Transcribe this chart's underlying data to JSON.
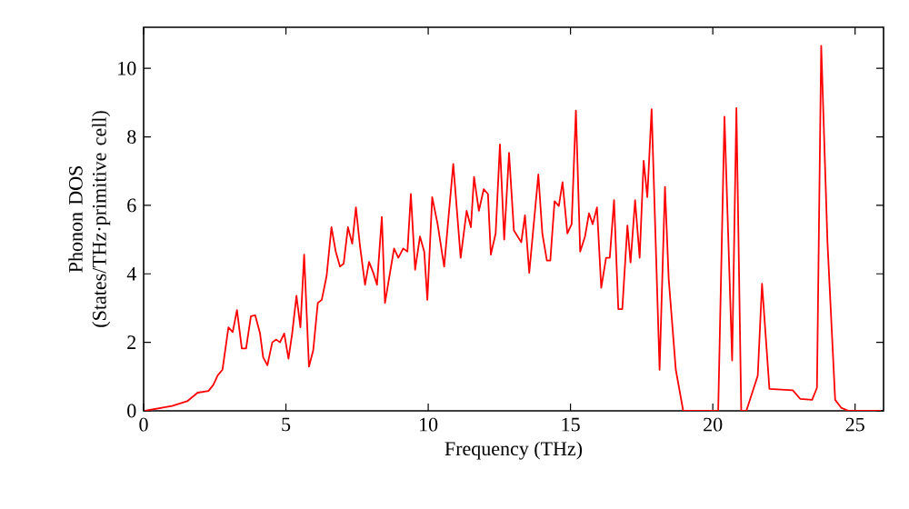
{
  "chart_data": {
    "type": "line",
    "xlabel": "Frequency (THz)",
    "ylabel": "Phonon DOS (States/THz·primitive cell)",
    "xlim": [
      0,
      26
    ],
    "ylim": [
      0,
      11.2
    ],
    "xticks": [
      0,
      5,
      10,
      15,
      20,
      25
    ],
    "yticks": [
      0,
      2,
      4,
      6,
      8,
      10
    ],
    "marker": "none",
    "line_style": "solid",
    "series": [
      {
        "color": "#ff0000",
        "x": [
          0.04,
          1.0,
          1.53,
          1.9,
          2.28,
          2.45,
          2.6,
          2.77,
          2.98,
          3.13,
          3.28,
          3.45,
          3.6,
          3.77,
          3.92,
          4.09,
          4.2,
          4.35,
          4.52,
          4.66,
          4.79,
          4.94,
          5.09,
          5.22,
          5.37,
          5.51,
          5.64,
          5.81,
          5.96,
          6.12,
          6.26,
          6.43,
          6.6,
          6.75,
          6.9,
          7.03,
          7.18,
          7.33,
          7.46,
          7.6,
          7.78,
          7.92,
          8.07,
          8.2,
          8.37,
          8.48,
          8.8,
          8.95,
          9.12,
          9.27,
          9.39,
          9.54,
          9.71,
          9.86,
          9.97,
          10.14,
          10.33,
          10.56,
          10.88,
          11.14,
          11.35,
          11.5,
          11.61,
          11.78,
          11.95,
          12.1,
          12.2,
          12.37,
          12.52,
          12.67,
          12.84,
          13.01,
          13.27,
          13.4,
          13.55,
          13.87,
          14.01,
          14.17,
          14.29,
          14.44,
          14.59,
          14.72,
          14.89,
          15.04,
          15.19,
          15.34,
          15.51,
          15.65,
          15.78,
          15.93,
          16.08,
          16.25,
          16.38,
          16.53,
          16.68,
          16.82,
          17.0,
          17.11,
          17.27,
          17.43,
          17.57,
          17.7,
          17.85,
          18.13,
          18.32,
          18.45,
          18.7,
          18.96,
          20.19,
          20.41,
          20.68,
          20.83,
          21.0,
          21.18,
          21.58,
          21.73,
          21.99,
          22.81,
          23.07,
          23.49,
          23.66,
          23.81,
          24.03,
          24.3,
          24.51,
          24.77,
          25.9
        ],
        "values": [
          0,
          0.14,
          0.28,
          0.53,
          0.58,
          0.76,
          1.03,
          1.2,
          2.44,
          2.3,
          2.94,
          1.82,
          1.82,
          2.76,
          2.79,
          2.26,
          1.56,
          1.33,
          2.0,
          2.08,
          2.0,
          2.26,
          1.52,
          2.26,
          3.36,
          2.44,
          4.56,
          1.29,
          1.77,
          3.15,
          3.24,
          3.94,
          5.36,
          4.65,
          4.21,
          4.3,
          5.36,
          4.88,
          5.94,
          4.83,
          3.68,
          4.35,
          4.03,
          3.68,
          5.66,
          3.15,
          4.74,
          4.47,
          4.74,
          4.65,
          6.33,
          4.12,
          5.09,
          4.65,
          3.24,
          6.24,
          5.45,
          4.21,
          7.21,
          4.47,
          5.84,
          5.36,
          6.83,
          5.84,
          6.47,
          6.33,
          4.56,
          5.18,
          7.78,
          5.0,
          7.53,
          5.27,
          4.92,
          5.71,
          4.03,
          6.9,
          5.18,
          4.39,
          4.39,
          6.12,
          5.98,
          6.68,
          5.18,
          5.45,
          8.77,
          4.65,
          5.09,
          5.77,
          5.45,
          5.94,
          3.59,
          4.47,
          4.47,
          6.15,
          2.97,
          2.97,
          5.41,
          4.33,
          6.15,
          4.47,
          7.3,
          6.24,
          8.81,
          1.2,
          6.54,
          3.86,
          1.2,
          0,
          0,
          8.59,
          1.47,
          8.84,
          0,
          0,
          1.03,
          3.71,
          0.64,
          0.6,
          0.35,
          0.32,
          0.67,
          10.66,
          4.92,
          0.32,
          0.09,
          0,
          0
        ]
      }
    ]
  }
}
